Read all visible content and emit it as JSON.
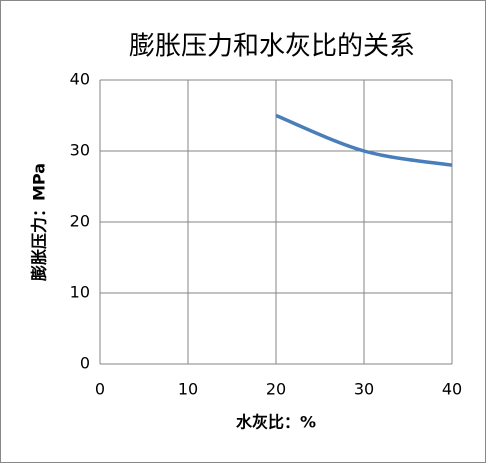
{
  "chart_data": {
    "type": "line",
    "title": "膨胀压力和水灰比的关系",
    "x_label": "水灰比：%",
    "y_label": "膨胀压力：MPa",
    "x": [
      20,
      30,
      40
    ],
    "series": [
      {
        "name": "膨胀压力",
        "color": "#4a7ebb",
        "values": [
          35,
          30,
          28
        ]
      }
    ],
    "xlim": [
      0,
      40
    ],
    "xticks": [
      0,
      10,
      20,
      30,
      40
    ],
    "ylim": [
      0,
      40
    ],
    "yticks": [
      0,
      10,
      20,
      30,
      40
    ],
    "grid": true,
    "smooth": true
  }
}
